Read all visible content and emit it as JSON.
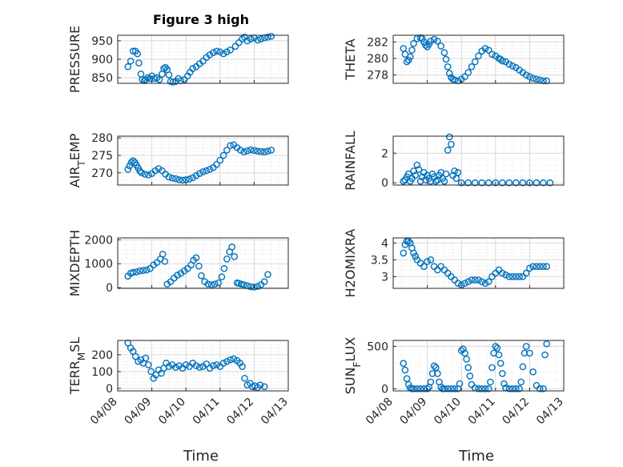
{
  "title": "Figure 3 high",
  "x_axis_label": "Time",
  "colors": {
    "marker": "#0072bd",
    "axis": "#262626",
    "grid": "#d9d9d9",
    "background": "#ffffff"
  },
  "chart_data": [
    {
      "id": "pressure",
      "type": "scatter",
      "ylabel": "PRESSURE",
      "ylabel_parts": [
        {
          "t": "PRESSURE"
        }
      ],
      "ylim": [
        835,
        965
      ],
      "yticks": [
        850,
        900,
        950
      ],
      "yticklabels": [
        "850",
        "900",
        "950"
      ],
      "xlim": [
        0,
        5
      ],
      "xticks": [
        0,
        1,
        2,
        3,
        4,
        5
      ],
      "xticklabels": [
        "04/08",
        "04/09",
        "04/10",
        "04/11",
        "04/12",
        "04/13"
      ],
      "x": [
        0.3,
        0.38,
        0.45,
        0.52,
        0.58,
        0.62,
        0.68,
        0.72,
        0.78,
        0.82,
        0.88,
        0.95,
        1.0,
        1.08,
        1.15,
        1.22,
        1.3,
        1.35,
        1.4,
        1.45,
        1.5,
        1.55,
        1.62,
        1.7,
        1.78,
        1.85,
        1.95,
        2.05,
        2.12,
        2.2,
        2.3,
        2.4,
        2.5,
        2.6,
        2.7,
        2.8,
        2.9,
        3.0,
        3.1,
        3.2,
        3.3,
        3.45,
        3.55,
        3.65,
        3.72,
        3.8,
        3.9,
        4.0,
        4.1,
        4.2,
        4.3,
        4.4,
        4.5
      ],
      "y": [
        880,
        895,
        922,
        922,
        915,
        890,
        860,
        845,
        842,
        845,
        850,
        848,
        855,
        848,
        850,
        845,
        860,
        875,
        878,
        872,
        858,
        840,
        838,
        840,
        848,
        842,
        845,
        855,
        865,
        875,
        880,
        888,
        895,
        905,
        912,
        918,
        922,
        920,
        915,
        920,
        925,
        935,
        945,
        955,
        960,
        950,
        955,
        958,
        952,
        955,
        958,
        960,
        962
      ]
    },
    {
      "id": "theta",
      "type": "scatter",
      "ylabel": "THETA",
      "ylabel_parts": [
        {
          "t": "THETA"
        }
      ],
      "ylim": [
        277,
        282.8
      ],
      "yticks": [
        278,
        280,
        282
      ],
      "yticklabels": [
        "278",
        "280",
        "282"
      ],
      "xlim": [
        0,
        5
      ],
      "xticks": [
        0,
        1,
        2,
        3,
        4,
        5
      ],
      "xticklabels": [
        "04/08",
        "04/09",
        "04/10",
        "04/11",
        "04/12",
        "04/13"
      ],
      "x": [
        0.3,
        0.35,
        0.4,
        0.45,
        0.5,
        0.55,
        0.6,
        0.7,
        0.8,
        0.85,
        0.9,
        0.95,
        1.0,
        1.05,
        1.1,
        1.2,
        1.3,
        1.4,
        1.5,
        1.55,
        1.6,
        1.65,
        1.7,
        1.75,
        1.8,
        1.9,
        2.0,
        2.1,
        2.2,
        2.3,
        2.4,
        2.5,
        2.6,
        2.7,
        2.8,
        2.9,
        3.0,
        3.1,
        3.15,
        3.2,
        3.3,
        3.4,
        3.5,
        3.6,
        3.7,
        3.8,
        3.9,
        4.0,
        4.1,
        4.2,
        4.3,
        4.4,
        4.5
      ],
      "y": [
        281.2,
        280.5,
        279.6,
        279.8,
        280.2,
        281.0,
        281.8,
        282.4,
        282.5,
        282.4,
        282.0,
        281.6,
        281.4,
        281.7,
        282.1,
        282.3,
        282.1,
        281.5,
        280.7,
        279.9,
        279.0,
        278.2,
        277.7,
        277.5,
        277.4,
        277.3,
        277.5,
        277.8,
        278.3,
        279.0,
        279.6,
        280.3,
        280.9,
        281.2,
        281.0,
        280.5,
        280.3,
        280.0,
        279.9,
        279.7,
        279.6,
        279.3,
        279.1,
        278.9,
        278.6,
        278.3,
        278.0,
        277.8,
        277.6,
        277.5,
        277.4,
        277.3,
        277.3
      ]
    },
    {
      "id": "air_temp",
      "type": "scatter",
      "ylabel": "AIR_TEMP",
      "ylabel_parts": [
        {
          "t": "AIR"
        },
        {
          "t": "T",
          "sub": true
        },
        {
          "t": "EMP"
        }
      ],
      "ylim": [
        266.5,
        280.5
      ],
      "yticks": [
        270,
        275,
        280
      ],
      "yticklabels": [
        "270",
        "275",
        "280"
      ],
      "xlim": [
        0,
        5
      ],
      "xticks": [
        0,
        1,
        2,
        3,
        4,
        5
      ],
      "xticklabels": [
        "04/08",
        "04/09",
        "04/10",
        "04/11",
        "04/12",
        "04/13"
      ],
      "x": [
        0.3,
        0.35,
        0.4,
        0.45,
        0.5,
        0.55,
        0.6,
        0.65,
        0.7,
        0.8,
        0.9,
        1.0,
        1.1,
        1.2,
        1.3,
        1.4,
        1.5,
        1.6,
        1.7,
        1.8,
        1.9,
        2.0,
        2.1,
        2.2,
        2.3,
        2.4,
        2.5,
        2.6,
        2.7,
        2.8,
        2.9,
        3.0,
        3.1,
        3.2,
        3.3,
        3.4,
        3.5,
        3.6,
        3.7,
        3.8,
        3.9,
        4.0,
        4.1,
        4.2,
        4.3,
        4.4,
        4.5
      ],
      "y": [
        271,
        272,
        273,
        273.5,
        273,
        272.2,
        271.4,
        270.5,
        270,
        269.6,
        269.4,
        269.8,
        270.6,
        271.2,
        270.6,
        269.6,
        268.8,
        268.5,
        268.3,
        268,
        267.9,
        268,
        268.2,
        268.6,
        269.2,
        269.8,
        270.3,
        270.6,
        271,
        271.5,
        272.4,
        273.6,
        275,
        276.5,
        277.8,
        278,
        277.2,
        276.5,
        276,
        276.3,
        276.6,
        276.4,
        276.2,
        276.1,
        276,
        276.2,
        276.5
      ]
    },
    {
      "id": "rainfall",
      "type": "scatter",
      "ylabel": "RAINFALL",
      "ylabel_parts": [
        {
          "t": "RAINFALL"
        }
      ],
      "ylim": [
        -0.15,
        3.15
      ],
      "yticks": [
        0,
        2
      ],
      "yticklabels": [
        "0",
        "2"
      ],
      "xlim": [
        0,
        5
      ],
      "xticks": [
        0,
        1,
        2,
        3,
        4,
        5
      ],
      "xticklabels": [
        "04/08",
        "04/09",
        "04/10",
        "04/11",
        "04/12",
        "04/13"
      ],
      "x": [
        0.3,
        0.35,
        0.4,
        0.45,
        0.5,
        0.55,
        0.6,
        0.65,
        0.7,
        0.75,
        0.8,
        0.85,
        0.9,
        0.95,
        1.0,
        1.05,
        1.1,
        1.15,
        1.2,
        1.25,
        1.3,
        1.35,
        1.4,
        1.45,
        1.5,
        1.55,
        1.6,
        1.65,
        1.7,
        1.75,
        1.8,
        1.85,
        1.9,
        2.0,
        2.2,
        2.4,
        2.6,
        2.8,
        3.0,
        3.2,
        3.4,
        3.6,
        3.8,
        4.0,
        4.2,
        4.4,
        4.6
      ],
      "y": [
        0.1,
        0.2,
        0.4,
        0.6,
        0.1,
        0.3,
        0.8,
        0.5,
        1.2,
        0.9,
        0.1,
        0.4,
        0.7,
        0.2,
        0.5,
        0.3,
        0.1,
        0.6,
        0.4,
        0.1,
        0.2,
        0.5,
        0.7,
        0.3,
        0.1,
        0.6,
        2.2,
        3.1,
        2.6,
        0.5,
        0.8,
        0.3,
        0.7,
        0,
        0,
        0,
        0,
        0,
        0,
        0,
        0,
        0,
        0,
        0,
        0,
        0,
        0
      ]
    },
    {
      "id": "mixdepth",
      "type": "scatter",
      "ylabel": "MIXDEPTH",
      "ylabel_parts": [
        {
          "t": "MIXDEPTH"
        }
      ],
      "ylim": [
        -30,
        2080
      ],
      "yticks": [
        0,
        1000,
        2000
      ],
      "yticklabels": [
        "0",
        "1000",
        "2000"
      ],
      "xlim": [
        0,
        5
      ],
      "xticks": [
        0,
        1,
        2,
        3,
        4,
        5
      ],
      "xticklabels": [
        "04/08",
        "04/09",
        "04/10",
        "04/11",
        "04/12",
        "04/13"
      ],
      "x": [
        0.3,
        0.38,
        0.45,
        0.55,
        0.65,
        0.75,
        0.85,
        0.95,
        1.05,
        1.15,
        1.25,
        1.32,
        1.38,
        1.45,
        1.55,
        1.65,
        1.75,
        1.85,
        1.95,
        2.05,
        2.15,
        2.22,
        2.3,
        2.38,
        2.45,
        2.55,
        2.65,
        2.75,
        2.85,
        2.95,
        3.05,
        3.12,
        3.2,
        3.28,
        3.35,
        3.42,
        3.5,
        3.55,
        3.62,
        3.7,
        3.8,
        3.9,
        4.0,
        4.1,
        4.2,
        4.3,
        4.4
      ],
      "y": [
        480,
        600,
        640,
        660,
        700,
        720,
        740,
        800,
        950,
        1050,
        1200,
        1400,
        1100,
        150,
        250,
        400,
        520,
        600,
        700,
        800,
        950,
        1150,
        1250,
        900,
        500,
        250,
        150,
        120,
        150,
        200,
        450,
        800,
        1200,
        1500,
        1700,
        1300,
        200,
        180,
        150,
        120,
        80,
        40,
        20,
        50,
        120,
        250,
        550
      ]
    },
    {
      "id": "h2omixra",
      "type": "scatter",
      "ylabel": "H2OMIXRA",
      "ylabel_parts": [
        {
          "t": "H2OMIXRA"
        }
      ],
      "ylim": [
        2.65,
        4.15
      ],
      "yticks": [
        3,
        3.5,
        4
      ],
      "yticklabels": [
        "3",
        "3.5",
        "4"
      ],
      "xlim": [
        0,
        5
      ],
      "xticks": [
        0,
        1,
        2,
        3,
        4,
        5
      ],
      "xticklabels": [
        "04/08",
        "04/09",
        "04/10",
        "04/11",
        "04/12",
        "04/13"
      ],
      "x": [
        0.3,
        0.35,
        0.4,
        0.45,
        0.5,
        0.55,
        0.6,
        0.65,
        0.7,
        0.8,
        0.9,
        1.0,
        1.1,
        1.2,
        1.3,
        1.4,
        1.5,
        1.6,
        1.7,
        1.8,
        1.9,
        2.0,
        2.1,
        2.2,
        2.3,
        2.4,
        2.5,
        2.6,
        2.7,
        2.8,
        2.9,
        3.0,
        3.1,
        3.2,
        3.3,
        3.4,
        3.5,
        3.6,
        3.7,
        3.8,
        3.9,
        4.0,
        4.1,
        4.2,
        4.3,
        4.4,
        4.5
      ],
      "y": [
        3.7,
        3.95,
        4.05,
        4.05,
        4.0,
        3.85,
        3.7,
        3.6,
        3.5,
        3.4,
        3.3,
        3.45,
        3.5,
        3.3,
        3.2,
        3.3,
        3.2,
        3.1,
        3.0,
        2.9,
        2.8,
        2.75,
        2.8,
        2.85,
        2.9,
        2.9,
        2.9,
        2.85,
        2.8,
        2.85,
        3.0,
        3.1,
        3.2,
        3.1,
        3.05,
        3.0,
        3.0,
        3.0,
        3.0,
        3.0,
        3.1,
        3.25,
        3.3,
        3.3,
        3.3,
        3.3,
        3.3
      ]
    },
    {
      "id": "terr_msl",
      "type": "scatter",
      "ylabel": "TERR_MSL",
      "ylabel_parts": [
        {
          "t": "TERR"
        },
        {
          "t": "M",
          "sub": true
        },
        {
          "t": "SL"
        }
      ],
      "ylim": [
        -15,
        285
      ],
      "yticks": [
        0,
        100,
        200
      ],
      "yticklabels": [
        "0",
        "100",
        "200"
      ],
      "xlim": [
        0,
        5
      ],
      "xticks": [
        0,
        1,
        2,
        3,
        4,
        5
      ],
      "xticklabels": [
        "04/08",
        "04/09",
        "04/10",
        "04/11",
        "04/12",
        "04/13"
      ],
      "x": [
        0.3,
        0.38,
        0.45,
        0.52,
        0.6,
        0.68,
        0.75,
        0.82,
        0.9,
        0.98,
        1.05,
        1.12,
        1.2,
        1.28,
        1.35,
        1.42,
        1.5,
        1.6,
        1.7,
        1.8,
        1.9,
        2.0,
        2.1,
        2.2,
        2.3,
        2.4,
        2.5,
        2.6,
        2.7,
        2.8,
        2.9,
        3.0,
        3.1,
        3.2,
        3.3,
        3.4,
        3.5,
        3.58,
        3.65,
        3.72,
        3.8,
        3.88,
        3.95,
        4.02,
        4.1,
        4.18,
        4.3
      ],
      "y": [
        270,
        240,
        220,
        190,
        160,
        170,
        150,
        180,
        140,
        100,
        60,
        80,
        110,
        90,
        120,
        150,
        130,
        140,
        125,
        135,
        120,
        140,
        130,
        150,
        135,
        125,
        130,
        145,
        120,
        135,
        140,
        130,
        150,
        160,
        170,
        175,
        165,
        150,
        130,
        60,
        20,
        30,
        10,
        15,
        5,
        20,
        10
      ]
    },
    {
      "id": "sun_flux",
      "type": "scatter",
      "ylabel": "SUN_FLUX",
      "ylabel_parts": [
        {
          "t": "SUN"
        },
        {
          "t": "F",
          "sub": true
        },
        {
          "t": "LUX"
        }
      ],
      "ylim": [
        -25,
        570
      ],
      "yticks": [
        0,
        500
      ],
      "yticklabels": [
        "0",
        "500"
      ],
      "xlim": [
        0,
        5
      ],
      "xticks": [
        0,
        1,
        2,
        3,
        4,
        5
      ],
      "xticklabels": [
        "04/08",
        "04/09",
        "04/10",
        "04/11",
        "04/12",
        "04/13"
      ],
      "x": [
        0.3,
        0.35,
        0.4,
        0.45,
        0.5,
        0.55,
        0.6,
        0.7,
        0.8,
        0.9,
        1.0,
        1.05,
        1.1,
        1.15,
        1.2,
        1.25,
        1.3,
        1.35,
        1.4,
        1.45,
        1.5,
        1.6,
        1.7,
        1.8,
        1.9,
        1.95,
        2.0,
        2.05,
        2.1,
        2.15,
        2.2,
        2.25,
        2.3,
        2.4,
        2.5,
        2.6,
        2.7,
        2.8,
        2.85,
        2.9,
        2.95,
        3.0,
        3.05,
        3.1,
        3.15,
        3.2,
        3.25,
        3.3,
        3.4,
        3.5,
        3.6,
        3.7,
        3.75,
        3.8,
        3.85,
        3.9,
        4.0,
        4.1,
        4.2,
        4.3,
        4.4,
        4.45,
        4.5
      ],
      "y": [
        300,
        220,
        120,
        50,
        10,
        0,
        0,
        0,
        0,
        0,
        0,
        20,
        80,
        180,
        270,
        250,
        180,
        80,
        20,
        0,
        0,
        0,
        0,
        0,
        0,
        60,
        450,
        470,
        420,
        350,
        250,
        150,
        50,
        10,
        0,
        0,
        0,
        0,
        80,
        250,
        420,
        500,
        480,
        400,
        300,
        180,
        60,
        10,
        0,
        0,
        0,
        0,
        80,
        260,
        420,
        500,
        420,
        200,
        40,
        0,
        0,
        400,
        530
      ]
    }
  ]
}
